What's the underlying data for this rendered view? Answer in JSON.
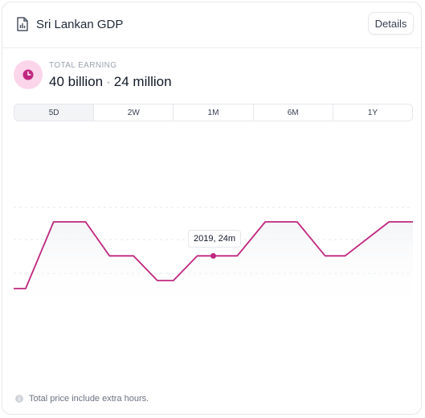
{
  "header": {
    "title": "Sri Lankan GDP",
    "details_label": "Details",
    "icon": "document-chart-icon"
  },
  "kpi": {
    "label": "TOTAL EARNING",
    "value_primary": "40 billion",
    "separator": "·",
    "value_secondary": "24 million",
    "icon": "clock-icon"
  },
  "tabs": [
    {
      "label": "5D",
      "active": true
    },
    {
      "label": "2W",
      "active": false
    },
    {
      "label": "1M",
      "active": false
    },
    {
      "label": "6M",
      "active": false
    },
    {
      "label": "1Y",
      "active": false
    }
  ],
  "tooltip": {
    "label": "2019, 24m"
  },
  "footer": {
    "note": "Total price include extra hours.",
    "icon": "info-icon"
  },
  "colors": {
    "accent": "#c0277f",
    "badge_bg": "#fbd5ea",
    "grid": "#e5e7eb"
  },
  "chart_data": {
    "type": "line",
    "grid": true,
    "series": [
      {
        "values": [
          [
            0,
            0.0
          ],
          [
            0.03,
            0.0
          ],
          [
            0.1,
            1.0
          ],
          [
            0.18,
            1.0
          ],
          [
            0.24,
            0.49
          ],
          [
            0.3,
            0.49
          ],
          [
            0.36,
            0.12
          ],
          [
            0.4,
            0.12
          ],
          [
            0.46,
            0.49
          ],
          [
            0.56,
            0.49
          ],
          [
            0.63,
            1.0
          ],
          [
            0.71,
            1.0
          ],
          [
            0.78,
            0.49
          ],
          [
            0.83,
            0.49
          ],
          [
            0.94,
            1.0
          ],
          [
            1.0,
            1.0
          ]
        ]
      }
    ],
    "highlight": {
      "x": 0.5,
      "y": 0.49
    }
  }
}
